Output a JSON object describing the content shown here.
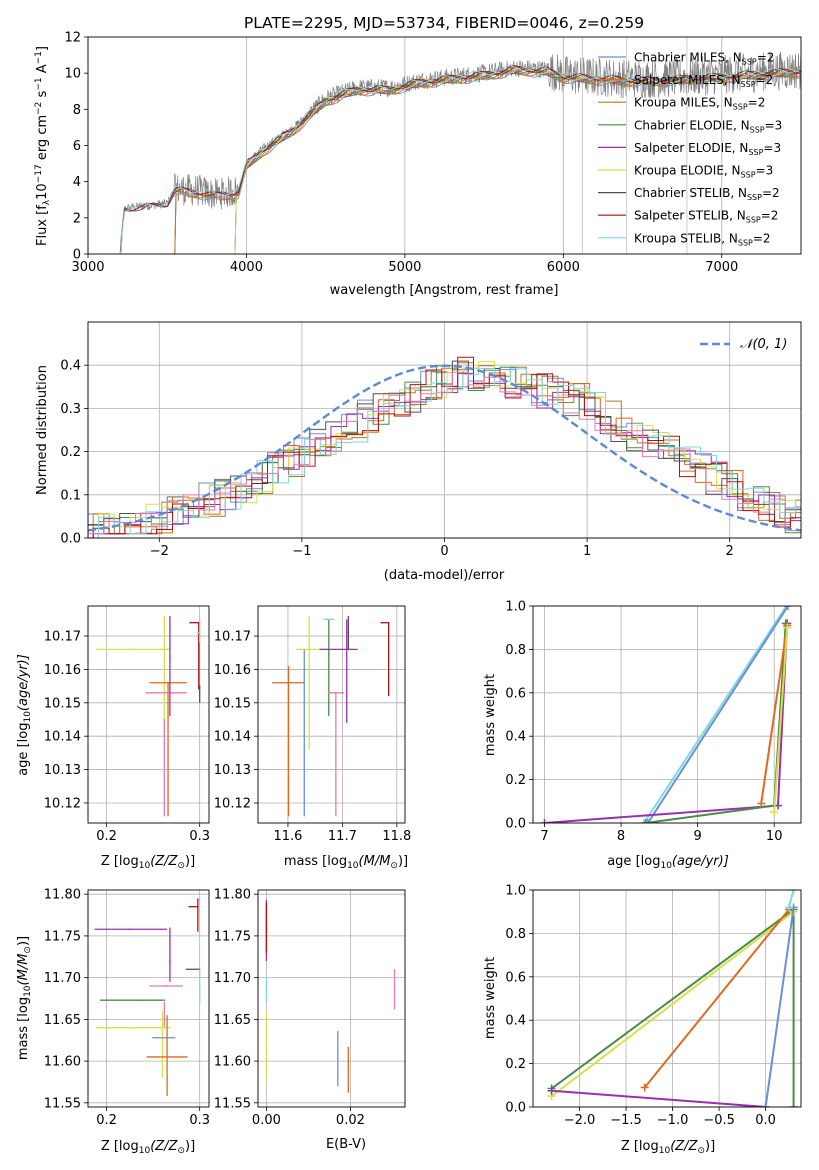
{
  "colors": {
    "chabrier_miles": "#6b8fd6",
    "salpeter_miles": "#e1681e",
    "kroupa_miles": "#b07a20",
    "chabrier_elodie": "#4a8a4a",
    "salpeter_elodie": "#9a2fb0",
    "kroupa_elodie": "#d6e04a",
    "chabrier_stelib": "#505050",
    "salpeter_stelib": "#b01010",
    "kroupa_stelib": "#80d8e0",
    "extra_pink": "#e87ab0",
    "data_grey": "#808080",
    "gaussian": "#5b8ad6"
  },
  "chart_data": [
    {
      "id": "spectrum",
      "type": "line",
      "title": "PLATE=2295, MJD=53734, FIBERID=0046, z=0.259",
      "xlabel": "wavelength [Angstrom, rest frame]",
      "ylabel": "Flux [f",
      "ylabel_sub": "λ",
      "ylabel_rest": "10",
      "ylabel_exp1": "−17",
      "ylabel_mid": " erg cm",
      "ylabel_exp2": "−2",
      "ylabel_mid2": " s",
      "ylabel_exp3": "−1",
      "ylabel_end": " A",
      "ylabel_exp4": "−1",
      "ylabel_close": "]",
      "xlim": [
        3000,
        7500
      ],
      "ylim": [
        0,
        12
      ],
      "xticks": [
        3000,
        4000,
        5000,
        6000,
        7000
      ],
      "yticks": [
        0,
        2,
        4,
        6,
        8,
        10,
        12
      ],
      "legend_position": "top-right",
      "legend": [
        {
          "pre": "Chabrier MILES, N",
          "sub": "SSP",
          "post": "=2",
          "color": "chabrier_miles"
        },
        {
          "pre": "Salpeter MILES, N",
          "sub": "SSP",
          "post": "=2",
          "color": "salpeter_miles"
        },
        {
          "pre": "Kroupa MILES, N",
          "sub": "SSP",
          "post": "=2",
          "color": "kroupa_miles"
        },
        {
          "pre": "Chabrier ELODIE, N",
          "sub": "SSP",
          "post": "=3",
          "color": "chabrier_elodie"
        },
        {
          "pre": "Salpeter ELODIE, N",
          "sub": "SSP",
          "post": "=3",
          "color": "salpeter_elodie"
        },
        {
          "pre": "Kroupa ELODIE, N",
          "sub": "SSP",
          "post": "=3",
          "color": "kroupa_elodie"
        },
        {
          "pre": "Chabrier STELIB, N",
          "sub": "SSP",
          "post": "=2",
          "color": "chabrier_stelib"
        },
        {
          "pre": "Salpeter STELIB, N",
          "sub": "SSP",
          "post": "=2",
          "color": "salpeter_stelib"
        },
        {
          "pre": "Kroupa STELIB, N",
          "sub": "SSP",
          "post": "=2",
          "color": "kroupa_stelib"
        }
      ],
      "data_envelope": [
        [
          3200,
          0
        ],
        [
          3230,
          2.5
        ],
        [
          3300,
          2.6
        ],
        [
          3500,
          2.8
        ],
        [
          3550,
          3.6
        ],
        [
          3700,
          3.5
        ],
        [
          3800,
          3.3
        ],
        [
          3950,
          3.5
        ],
        [
          4000,
          5.0
        ],
        [
          4100,
          5.8
        ],
        [
          4300,
          7.0
        ],
        [
          4500,
          8.6
        ],
        [
          4700,
          9.2
        ],
        [
          4900,
          9.2
        ],
        [
          5100,
          9.6
        ],
        [
          5300,
          9.8
        ],
        [
          5500,
          10.0
        ],
        [
          5700,
          10.3
        ],
        [
          5900,
          10.2
        ],
        [
          6000,
          9.9
        ],
        [
          6200,
          9.8
        ],
        [
          6400,
          9.7
        ],
        [
          6600,
          9.7
        ],
        [
          6800,
          9.8
        ],
        [
          7000,
          9.9
        ],
        [
          7300,
          10.1
        ],
        [
          7500,
          10.2
        ]
      ]
    },
    {
      "id": "residuals",
      "type": "line",
      "xlabel": "(data-model)/error",
      "ylabel": "Normed distribution",
      "xlim": [
        -2.5,
        2.5
      ],
      "ylim": [
        0,
        0.5
      ],
      "xticks": [
        -2,
        -1,
        0,
        1,
        2
      ],
      "yticks": [
        0.0,
        0.1,
        0.2,
        0.3,
        0.4
      ],
      "gaussian_label": "𝒩(0, 1)",
      "legend_position": "top-right",
      "hist_base": [
        0.02,
        0.02,
        0.03,
        0.04,
        0.05,
        0.06,
        0.07,
        0.09,
        0.1,
        0.12,
        0.14,
        0.16,
        0.18,
        0.2,
        0.22,
        0.24,
        0.26,
        0.28,
        0.3,
        0.31,
        0.33,
        0.35,
        0.37,
        0.38,
        0.38,
        0.37,
        0.36,
        0.35,
        0.34,
        0.33,
        0.32,
        0.3,
        0.28,
        0.26,
        0.24,
        0.22,
        0.2,
        0.18,
        0.16,
        0.14,
        0.12,
        0.1,
        0.08,
        0.06,
        0.05
      ]
    },
    {
      "id": "age_vs_Z",
      "type": "scatter",
      "xlabel": "Z [log",
      "xlabel_sub": "10",
      "xlabel_rest": "(Z/Z",
      "xlabel_sun": "⊙",
      "xlabel_close": ")]",
      "ylabel": "age  [log",
      "ylabel_sub": "10",
      "ylabel_rest": "(age/yr)]",
      "xlim": [
        0.18,
        0.31
      ],
      "ylim": [
        10.114,
        10.179
      ],
      "xticks": [
        0.2,
        0.3
      ],
      "yticks": [
        10.12,
        10.13,
        10.14,
        10.15,
        10.16,
        10.17
      ],
      "points": [
        {
          "x": 0.229,
          "y": 10.166,
          "xerr": [
            0.04,
            0.04
          ],
          "yerr": [
            0.0,
            0.0
          ],
          "color": "kroupa_elodie"
        },
        {
          "x": 0.262,
          "y": 10.166,
          "xerr": [
            0.005,
            0.005
          ],
          "yerr": [
            0.025,
            0.01
          ],
          "color": "kroupa_elodie"
        },
        {
          "x": 0.266,
          "y": 10.156,
          "xerr": [
            0.02,
            0.02
          ],
          "yerr": [
            0.04,
            0.0
          ],
          "color": "salpeter_miles"
        },
        {
          "x": 0.264,
          "y": 10.153,
          "xerr": [
            0.022,
            0.022
          ],
          "yerr": [
            0.0,
            0.0
          ],
          "color": "extra_pink"
        },
        {
          "x": 0.262,
          "y": 10.145,
          "xerr": [
            0.0,
            0.0
          ],
          "yerr": [
            0.029,
            0.0
          ],
          "color": "extra_pink"
        },
        {
          "x": 0.268,
          "y": 10.164,
          "xerr": [
            0.0,
            0.0
          ],
          "yerr": [
            0.018,
            0.012
          ],
          "color": "salpeter_elodie"
        },
        {
          "x": 0.299,
          "y": 10.174,
          "xerr": [
            0.01,
            0.0
          ],
          "yerr": [
            0.02,
            0.0
          ],
          "color": "salpeter_stelib"
        },
        {
          "x": 0.3,
          "y": 10.171,
          "xerr": [
            0.003,
            0.0
          ],
          "yerr": [
            0.003,
            0.004
          ],
          "color": "kroupa_stelib"
        },
        {
          "x": 0.3,
          "y": 10.155,
          "xerr": [
            0.0,
            0.0
          ],
          "yerr": [
            0.005,
            0.0
          ],
          "color": "chabrier_stelib"
        }
      ]
    },
    {
      "id": "age_vs_mass",
      "type": "scatter",
      "xlabel": "mass [log",
      "xlabel_sub": "10",
      "xlabel_rest": "(M/M",
      "xlabel_sun": "⊙",
      "xlabel_close": ")]",
      "xlim": [
        11.545,
        11.815
      ],
      "ylim": [
        10.114,
        10.179
      ],
      "xticks": [
        11.6,
        11.7,
        11.8
      ],
      "yticks": [
        10.12,
        10.13,
        10.14,
        10.15,
        10.16,
        10.17
      ],
      "points": [
        {
          "x": 11.601,
          "y": 10.156,
          "xerr": [
            0.03,
            0.03
          ],
          "yerr": [
            0.04,
            0.005
          ],
          "color": "salpeter_miles"
        },
        {
          "x": 11.63,
          "y": 10.166,
          "xerr": [
            0.0,
            0.0
          ],
          "yerr": [
            0.05,
            0.0
          ],
          "color": "chabrier_miles"
        },
        {
          "x": 11.639,
          "y": 10.166,
          "xerr": [
            0.025,
            0.03
          ],
          "yerr": [
            0.03,
            0.01
          ],
          "color": "kroupa_elodie"
        },
        {
          "x": 11.675,
          "y": 10.166,
          "xerr": [
            0.0,
            0.0
          ],
          "yerr": [
            0.02,
            0.009
          ],
          "color": "chabrier_elodie"
        },
        {
          "x": 11.688,
          "y": 10.153,
          "xerr": [
            0.015,
            0.015
          ],
          "yerr": [
            0.037,
            0.0
          ],
          "color": "extra_pink"
        },
        {
          "x": 11.675,
          "y": 10.175,
          "xerr": [
            0.01,
            0.01
          ],
          "yerr": [
            0.0,
            0.0
          ],
          "color": "kroupa_stelib"
        },
        {
          "x": 11.708,
          "y": 10.166,
          "xerr": [
            0.05,
            0.02
          ],
          "yerr": [
            0.022,
            0.009
          ],
          "color": "salpeter_elodie"
        },
        {
          "x": 11.785,
          "y": 10.174,
          "xerr": [
            0.015,
            0.0
          ],
          "yerr": [
            0.022,
            0.0
          ],
          "color": "salpeter_stelib"
        },
        {
          "x": 11.711,
          "y": 10.171,
          "xerr": [
            0.0,
            0.0
          ],
          "yerr": [
            0.005,
            0.005
          ],
          "color": "chabrier_stelib"
        }
      ]
    },
    {
      "id": "massweight_vs_age",
      "type": "line",
      "xlabel": "age  [log",
      "xlabel_sub": "10",
      "xlabel_rest": "(age/yr)]",
      "ylabel": "mass weight",
      "xlim": [
        6.85,
        10.35
      ],
      "ylim": [
        0,
        1
      ],
      "xticks": [
        7,
        8,
        9,
        10
      ],
      "yticks": [
        0.0,
        0.2,
        0.4,
        0.6,
        0.8,
        1.0
      ],
      "series": [
        {
          "x": [
            8.3,
            10.16
          ],
          "y": [
            0.0,
            1.0
          ],
          "color": "kroupa_stelib"
        },
        {
          "x": [
            8.35,
            10.18
          ],
          "y": [
            0.0,
            1.0
          ],
          "color": "chabrier_miles"
        },
        {
          "x": [
            7.0,
            10.05,
            10.17
          ],
          "y": [
            0.0,
            0.08,
            0.92
          ],
          "color": "salpeter_elodie"
        },
        {
          "x": [
            8.32,
            10.0,
            10.15
          ],
          "y": [
            0.0,
            0.08,
            0.92
          ],
          "color": "chabrier_elodie"
        },
        {
          "x": [
            9.83,
            10.17
          ],
          "y": [
            0.09,
            0.91
          ],
          "color": "salpeter_miles"
        },
        {
          "x": [
            10.0,
            10.17
          ],
          "y": [
            0.05,
            0.9
          ],
          "color": "kroupa_elodie"
        }
      ]
    },
    {
      "id": "mass_vs_Z",
      "type": "scatter",
      "xlabel": "Z [log",
      "xlabel_sub": "10",
      "xlabel_rest": "(Z/Z",
      "xlabel_sun": "⊙",
      "xlabel_close": ")]",
      "ylabel": "mass [log",
      "ylabel_sub": "10",
      "ylabel_rest": "(M/M",
      "ylabel_sun": "⊙",
      "ylabel_close": ")]",
      "xlim": [
        0.18,
        0.31
      ],
      "ylim": [
        11.545,
        11.805
      ],
      "xticks": [
        0.2,
        0.3
      ],
      "yticks": [
        11.55,
        11.6,
        11.65,
        11.7,
        11.75,
        11.8
      ],
      "points": [
        {
          "x": 0.225,
          "y": 11.758,
          "xerr": [
            0.038,
            0.04
          ],
          "yerr": [
            0.0,
            0.0
          ],
          "color": "salpeter_elodie"
        },
        {
          "x": 0.268,
          "y": 11.72,
          "xerr": [
            0.0,
            0.0
          ],
          "yerr": [
            0.025,
            0.04
          ],
          "color": "salpeter_elodie"
        },
        {
          "x": 0.298,
          "y": 11.785,
          "xerr": [
            0.01,
            0.0
          ],
          "yerr": [
            0.03,
            0.01
          ],
          "color": "salpeter_stelib"
        },
        {
          "x": 0.3,
          "y": 11.71,
          "xerr": [
            0.015,
            0.0
          ],
          "yerr": [
            0.0,
            0.0
          ],
          "color": "chabrier_stelib"
        },
        {
          "x": 0.3,
          "y": 11.68,
          "xerr": [
            0.0,
            0.0
          ],
          "yerr": [
            0.01,
            0.03
          ],
          "color": "kroupa_stelib"
        },
        {
          "x": 0.263,
          "y": 11.69,
          "xerr": [
            0.0,
            0.0
          ],
          "yerr": [
            0.0,
            0.0
          ],
          "color": "extra_pink"
        },
        {
          "x": 0.264,
          "y": 11.69,
          "xerr": [
            0.018,
            0.018
          ],
          "yerr": [
            0.0,
            0.0
          ],
          "color": "extra_pink"
        },
        {
          "x": 0.262,
          "y": 11.67,
          "xerr": [
            0.0,
            0.0
          ],
          "yerr": [
            0.03,
            0.0
          ],
          "color": "extra_pink"
        },
        {
          "x": 0.233,
          "y": 11.673,
          "xerr": [
            0.04,
            0.03
          ],
          "yerr": [
            0.0,
            0.0
          ],
          "color": "chabrier_elodie"
        },
        {
          "x": 0.229,
          "y": 11.64,
          "xerr": [
            0.04,
            0.04
          ],
          "yerr": [
            0.0,
            0.0
          ],
          "color": "kroupa_elodie"
        },
        {
          "x": 0.26,
          "y": 11.64,
          "xerr": [
            0.0,
            0.0
          ],
          "yerr": [
            0.06,
            0.02
          ],
          "color": "kroupa_elodie"
        },
        {
          "x": 0.264,
          "y": 11.628,
          "xerr": [
            0.015,
            0.01
          ],
          "yerr": [
            0.0,
            0.0
          ],
          "color": "chabrier_miles"
        },
        {
          "x": 0.265,
          "y": 11.605,
          "xerr": [
            0.022,
            0.022
          ],
          "yerr": [
            0.047,
            0.05
          ],
          "color": "salpeter_miles"
        }
      ]
    },
    {
      "id": "mass_vs_ebv",
      "type": "scatter",
      "xlabel": "E(B-V)",
      "xlim": [
        -0.002,
        0.033
      ],
      "ylim": [
        11.545,
        11.805
      ],
      "xticks": [
        0.0,
        0.02
      ],
      "yticks": [
        11.55,
        11.6,
        11.65,
        11.7,
        11.75,
        11.8
      ],
      "points": [
        {
          "x": 0.0,
          "y": 11.76,
          "xerr": [
            0.0,
            0.0
          ],
          "yerr": [
            0.04,
            0.033
          ],
          "color": "salpeter_elodie"
        },
        {
          "x": 0.0,
          "y": 11.74,
          "xerr": [
            0.0,
            0.0
          ],
          "yerr": [
            0.01,
            0.05
          ],
          "color": "salpeter_stelib"
        },
        {
          "x": 0.0,
          "y": 11.69,
          "xerr": [
            0.0,
            0.0
          ],
          "yerr": [
            0.02,
            0.01
          ],
          "color": "kroupa_stelib"
        },
        {
          "x": 0.0,
          "y": 11.62,
          "xerr": [
            0.0,
            0.0
          ],
          "yerr": [
            0.04,
            0.04
          ],
          "color": "kroupa_elodie"
        },
        {
          "x": 0.017,
          "y": 11.603,
          "xerr": [
            0.0,
            0.0
          ],
          "yerr": [
            0.033,
            0.033
          ],
          "color": "chabrier_miles"
        },
        {
          "x": 0.0195,
          "y": 11.592,
          "xerr": [
            0.0,
            0.0
          ],
          "yerr": [
            0.03,
            0.025
          ],
          "color": "salpeter_miles"
        },
        {
          "x": 0.0305,
          "y": 11.686,
          "xerr": [
            0.0,
            0.0
          ],
          "yerr": [
            0.024,
            0.024
          ],
          "color": "extra_pink"
        }
      ]
    },
    {
      "id": "massweight_vs_Z",
      "type": "line",
      "xlabel": "Z [log",
      "xlabel_sub": "10",
      "xlabel_rest": "(Z/Z",
      "xlabel_sun": "⊙",
      "xlabel_close": ")]",
      "ylabel": "mass weight",
      "xlim": [
        -2.5,
        0.38
      ],
      "ylim": [
        0,
        1
      ],
      "xticks": [
        -2.0,
        -1.5,
        -1.0,
        -0.5,
        0.0
      ],
      "yticks": [
        0.0,
        0.2,
        0.4,
        0.6,
        0.8,
        1.0
      ],
      "series": [
        {
          "x": [
            -2.3,
            0.3,
            0.3
          ],
          "y": [
            0.085,
            0.91,
            0.0
          ],
          "color": "chabrier_elodie"
        },
        {
          "x": [
            -2.3,
            0.3
          ],
          "y": [
            0.05,
            0.9
          ],
          "color": "kroupa_elodie"
        },
        {
          "x": [
            -2.3,
            0.0
          ],
          "y": [
            0.075,
            0.0
          ],
          "color": "salpeter_elodie"
        },
        {
          "x": [
            -1.3,
            0.25
          ],
          "y": [
            0.09,
            0.91
          ],
          "color": "salpeter_miles"
        },
        {
          "x": [
            0.0,
            0.3
          ],
          "y": [
            0.0,
            0.92
          ],
          "color": "chabrier_miles"
        },
        {
          "x": [
            0.25,
            0.3
          ],
          "y": [
            0.92,
            1.0
          ],
          "color": "kroupa_stelib"
        }
      ]
    }
  ]
}
